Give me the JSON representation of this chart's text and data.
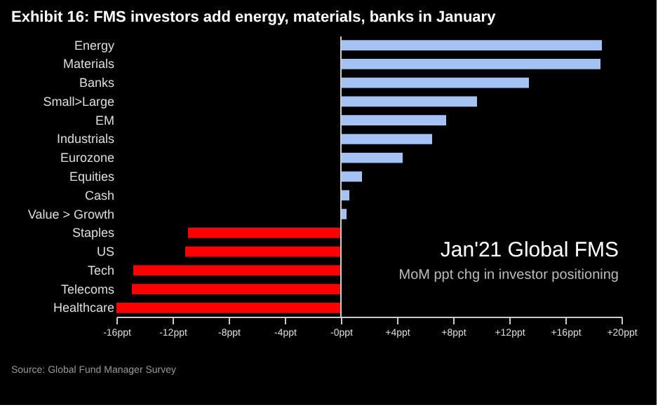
{
  "chart_data": {
    "type": "bar",
    "orientation": "horizontal",
    "title": "Exhibit 16: FMS investors add energy, materials, banks in January",
    "categories": [
      "Energy",
      "Materials",
      "Banks",
      "Small>Large",
      "EM",
      "Industrials",
      "Eurozone",
      "Equities",
      "Cash",
      "Value > Growth",
      "Staples",
      "US",
      "Tech",
      "Telecoms",
      "Healthcare"
    ],
    "values": [
      18.6,
      18.5,
      13.4,
      9.7,
      7.5,
      6.5,
      4.4,
      1.5,
      0.6,
      0.4,
      -10.9,
      -11.1,
      -14.8,
      -14.9,
      -16.0
    ],
    "colors": [
      "#a4c2f4",
      "#a4c2f4",
      "#a4c2f4",
      "#a4c2f4",
      "#a4c2f4",
      "#a4c2f4",
      "#a4c2f4",
      "#a4c2f4",
      "#a4c2f4",
      "#a4c2f4",
      "#ff0000",
      "#ff0000",
      "#ff0000",
      "#ff0000",
      "#ff0000"
    ],
    "xlim": [
      -16,
      20
    ],
    "xticks": [
      {
        "value": -16,
        "label": "-16ppt"
      },
      {
        "value": -12,
        "label": "-12ppt"
      },
      {
        "value": -8,
        "label": "-8ppt"
      },
      {
        "value": -4,
        "label": "-4ppt"
      },
      {
        "value": 0,
        "label": "-0ppt"
      },
      {
        "value": 4,
        "label": "+4ppt"
      },
      {
        "value": 8,
        "label": "+8ppt"
      },
      {
        "value": 12,
        "label": "+12ppt"
      },
      {
        "value": 16,
        "label": "+16ppt"
      },
      {
        "value": 20,
        "label": "+20ppt"
      }
    ],
    "annotations": [
      "Jan'21 Global FMS",
      "MoM ppt chg in investor positioning",
      "Source: Global Fund Manager Survey"
    ]
  }
}
